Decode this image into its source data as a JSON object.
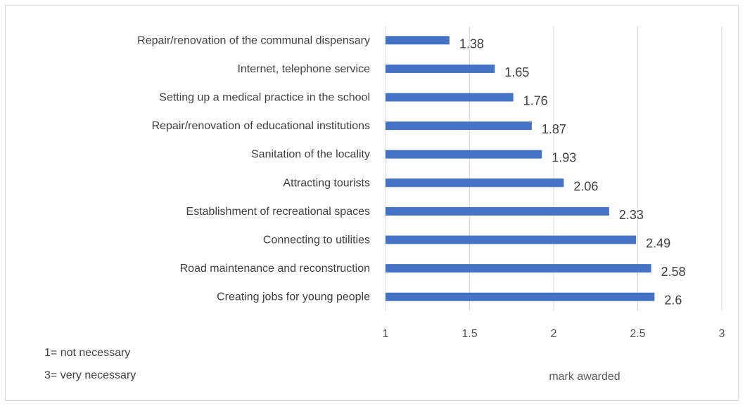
{
  "chart_data": {
    "type": "bar",
    "orientation": "horizontal",
    "categories": [
      "Repair/renovation of the communal dispensary",
      "Internet, telephone service",
      "Setting up a medical practice in the school",
      "Repair/renovation of educational institutions",
      "Sanitation of the locality",
      "Attracting tourists",
      "Establishment of recreational spaces",
      "Connecting to utilities",
      "Road maintenance and reconstruction",
      "Creating jobs for young people"
    ],
    "values": [
      1.38,
      1.65,
      1.76,
      1.87,
      1.93,
      2.06,
      2.33,
      2.49,
      2.58,
      2.6
    ],
    "value_labels": [
      "1.38",
      "1.65",
      "1.76",
      "1.87",
      "1.93",
      "2.06",
      "2.33",
      "2.49",
      "2.58",
      "2.6"
    ],
    "xlabel": "mark awarded",
    "xlim": [
      1,
      3
    ],
    "xticks": [
      1,
      1.5,
      2,
      2.5,
      3
    ],
    "xtick_labels": [
      "1",
      "1.5",
      "2",
      "2.5",
      "3"
    ],
    "grid": true,
    "bar_color": "#4472c4",
    "grid_color": "#d9d9d9"
  },
  "legend_notes": {
    "line1": "1= not necessary",
    "line2": "3= very necessary"
  }
}
